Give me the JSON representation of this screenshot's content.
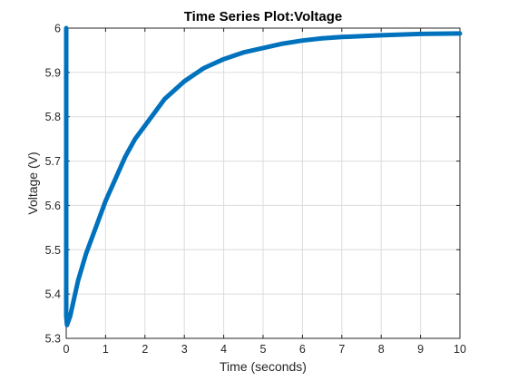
{
  "chart_data": {
    "type": "line",
    "title": "Time Series Plot:Voltage",
    "xlabel": "Time (seconds)",
    "ylabel": "Voltage (V)",
    "xlim": [
      0,
      10
    ],
    "ylim": [
      5.3,
      6.0
    ],
    "x_ticks": [
      "0",
      "1",
      "2",
      "3",
      "4",
      "5",
      "6",
      "7",
      "8",
      "9",
      "10"
    ],
    "y_ticks": [
      "5.3",
      "5.4",
      "5.5",
      "5.6",
      "5.7",
      "5.8",
      "5.9",
      "6"
    ],
    "grid": true,
    "series": [
      {
        "color": "#0072BD",
        "x": [
          0,
          0,
          0.02,
          0.1,
          0.3,
          0.5,
          0.75,
          1.0,
          1.25,
          1.5,
          1.75,
          2.0,
          2.5,
          3.0,
          3.5,
          4.0,
          4.5,
          5.0,
          5.5,
          6.0,
          6.5,
          7.0,
          8.0,
          9.0,
          10.0
        ],
        "y": [
          6.0,
          5.35,
          5.33,
          5.35,
          5.43,
          5.49,
          5.55,
          5.61,
          5.66,
          5.71,
          5.75,
          5.78,
          5.84,
          5.88,
          5.91,
          5.93,
          5.945,
          5.955,
          5.965,
          5.972,
          5.977,
          5.98,
          5.984,
          5.987,
          5.988
        ]
      }
    ]
  }
}
